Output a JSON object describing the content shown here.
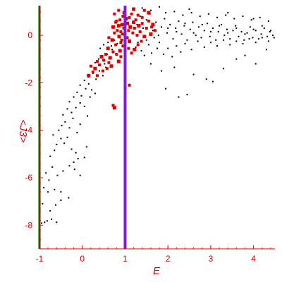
{
  "chart_data": {
    "type": "scatter",
    "title": "",
    "xlabel": "E",
    "ylabel": "<J3>",
    "xlim": [
      -1,
      4.5
    ],
    "ylim": [
      -9,
      1.25
    ],
    "x_ticks": [
      -1,
      0,
      1,
      2,
      3,
      4
    ],
    "y_ticks": [
      -8,
      -6,
      -4,
      -2,
      0
    ],
    "x_tick_labels": [
      "-1",
      "0",
      "1",
      "2",
      "3",
      "4"
    ],
    "y_tick_labels": [
      "-8",
      "-6",
      "-4",
      "-2",
      "0"
    ],
    "grid": false,
    "legend": false,
    "colors": {
      "black_points": "#000000",
      "red_points": "#e00000",
      "left_line": "#006400",
      "center_line": "#7a1fd6",
      "tick_text": "#e00000",
      "axis": "#e00000"
    },
    "vertical_lines": [
      {
        "x": -1.0,
        "color": "#006400"
      },
      {
        "x": 1.0,
        "color": "#7a1fd6"
      }
    ],
    "series": [
      {
        "color": "#000000",
        "marker_size": "small",
        "points": [
          [
            -0.95,
            -7.92
          ],
          [
            -0.88,
            -7.88
          ],
          [
            -0.82,
            -7.82
          ],
          [
            -0.72,
            -7.75
          ],
          [
            -0.6,
            -7.88
          ],
          [
            -0.93,
            -7.1
          ],
          [
            -0.8,
            -6.6
          ],
          [
            -0.75,
            -7.4
          ],
          [
            -0.62,
            -7.15
          ],
          [
            -0.5,
            -6.95
          ],
          [
            -0.9,
            -6.42
          ],
          [
            -0.78,
            -6.1
          ],
          [
            -0.65,
            -6.5
          ],
          [
            -0.5,
            -6.6
          ],
          [
            -0.32,
            -6.85
          ],
          [
            -0.85,
            -5.8
          ],
          [
            -0.7,
            -5.55
          ],
          [
            -0.58,
            -5.9
          ],
          [
            -0.45,
            -5.72
          ],
          [
            -0.3,
            -5.5
          ],
          [
            -0.2,
            -5.35
          ],
          [
            -0.1,
            -5.2
          ],
          [
            -0.05,
            -5.9
          ],
          [
            -0.18,
            -5.65
          ],
          [
            -0.75,
            -5.1
          ],
          [
            -0.65,
            -4.85
          ],
          [
            -0.6,
            -4.6
          ],
          [
            -0.5,
            -4.35
          ],
          [
            -0.42,
            -4.55
          ],
          [
            -0.35,
            -4.3
          ],
          [
            -0.25,
            -4.8
          ],
          [
            -0.15,
            -4.95
          ],
          [
            0.05,
            -5.15
          ],
          [
            -0.68,
            -4.2
          ],
          [
            -0.55,
            -4.0
          ],
          [
            -0.48,
            -3.8
          ],
          [
            -0.4,
            -3.65
          ],
          [
            -0.3,
            -3.9
          ],
          [
            -0.22,
            -3.5
          ],
          [
            -0.12,
            -4.1
          ],
          [
            -0.05,
            -3.75
          ],
          [
            0.1,
            -4.7
          ],
          [
            -0.45,
            -3.35
          ],
          [
            -0.35,
            -3.1
          ],
          [
            -0.25,
            -3.25
          ],
          [
            -0.15,
            -3.05
          ],
          [
            -0.05,
            -2.85
          ],
          [
            0.05,
            -3.0
          ],
          [
            0.12,
            -3.4
          ],
          [
            0.18,
            -2.6
          ],
          [
            -0.3,
            -2.8
          ],
          [
            -0.2,
            -2.6
          ],
          [
            -0.12,
            -2.4
          ],
          [
            -0.02,
            -2.55
          ],
          [
            0.08,
            -2.25
          ],
          [
            0.15,
            -2.05
          ],
          [
            0.22,
            -2.3
          ],
          [
            0.3,
            -2.45
          ],
          [
            -0.05,
            -2.1
          ],
          [
            0.05,
            -1.9
          ],
          [
            0.15,
            -1.75
          ],
          [
            0.25,
            -1.6
          ],
          [
            0.32,
            -1.85
          ],
          [
            0.4,
            -1.5
          ],
          [
            0.48,
            -1.7
          ],
          [
            0.55,
            -1.35
          ],
          [
            0.2,
            -1.3
          ],
          [
            0.3,
            -1.15
          ],
          [
            0.38,
            -1.0
          ],
          [
            0.45,
            -0.9
          ],
          [
            0.52,
            -1.2
          ],
          [
            0.58,
            -0.8
          ],
          [
            0.65,
            -0.95
          ],
          [
            0.7,
            -0.6
          ],
          [
            0.42,
            -0.55
          ],
          [
            0.5,
            -0.4
          ],
          [
            0.6,
            -0.3
          ],
          [
            0.68,
            -0.45
          ],
          [
            0.75,
            -0.2
          ],
          [
            0.82,
            -0.35
          ],
          [
            0.88,
            -0.1
          ],
          [
            0.92,
            0.05
          ],
          [
            1.25,
            -0.5
          ],
          [
            1.3,
            -0.3
          ],
          [
            1.38,
            -0.65
          ],
          [
            1.45,
            -0.85
          ],
          [
            1.5,
            -0.2
          ],
          [
            1.55,
            -0.4
          ],
          [
            1.62,
            -0.75
          ],
          [
            1.68,
            -0.1
          ],
          [
            1.75,
            -0.55
          ],
          [
            1.8,
            -0.3
          ],
          [
            1.28,
            0.45
          ],
          [
            1.35,
            0.8
          ],
          [
            1.42,
            0.3
          ],
          [
            1.5,
            0.65
          ],
          [
            1.58,
            0.9
          ],
          [
            1.65,
            0.2
          ],
          [
            1.72,
            0.55
          ],
          [
            1.78,
            0.0
          ],
          [
            1.85,
            0.35
          ],
          [
            1.92,
            0.7
          ],
          [
            1.98,
            0.1
          ],
          [
            2.05,
            0.45
          ],
          [
            2.12,
            -0.15
          ],
          [
            2.18,
            0.3
          ],
          [
            2.25,
            0.6
          ],
          [
            2.32,
            0.05
          ],
          [
            2.38,
            0.4
          ],
          [
            2.45,
            -0.2
          ],
          [
            2.52,
            0.25
          ],
          [
            2.58,
            0.55
          ],
          [
            2.65,
            0.0
          ],
          [
            2.72,
            0.35
          ],
          [
            2.78,
            -0.1
          ],
          [
            2.85,
            0.2
          ],
          [
            2.92,
            0.5
          ],
          [
            2.98,
            -0.05
          ],
          [
            3.05,
            0.3
          ],
          [
            3.12,
            -0.2
          ],
          [
            3.18,
            0.15
          ],
          [
            3.25,
            0.45
          ],
          [
            3.32,
            0.0
          ],
          [
            3.38,
            0.25
          ],
          [
            3.45,
            -0.15
          ],
          [
            3.52,
            0.2
          ],
          [
            3.58,
            0.4
          ],
          [
            3.65,
            -0.05
          ],
          [
            3.72,
            0.15
          ],
          [
            3.78,
            -0.2
          ],
          [
            3.85,
            0.1
          ],
          [
            3.92,
            0.35
          ],
          [
            3.98,
            -0.1
          ],
          [
            4.05,
            0.2
          ],
          [
            4.12,
            -0.15
          ],
          [
            4.18,
            0.05
          ],
          [
            4.25,
            0.3
          ],
          [
            4.32,
            -0.05
          ],
          [
            4.38,
            0.15
          ],
          [
            4.45,
            0.0
          ],
          [
            1.9,
            -0.8
          ],
          [
            2.0,
            -0.55
          ],
          [
            2.1,
            -0.9
          ],
          [
            2.2,
            -0.45
          ],
          [
            2.3,
            -0.7
          ],
          [
            2.4,
            -0.35
          ],
          [
            2.55,
            -0.6
          ],
          [
            2.7,
            -0.25
          ],
          [
            2.85,
            -0.5
          ],
          [
            3.0,
            -0.3
          ],
          [
            3.15,
            -0.45
          ],
          [
            3.3,
            -0.2
          ],
          [
            3.45,
            -0.4
          ],
          [
            3.6,
            -0.25
          ],
          [
            3.75,
            -0.35
          ],
          [
            3.9,
            -0.15
          ],
          [
            4.05,
            -0.3
          ],
          [
            4.2,
            -0.1
          ],
          [
            4.35,
            -0.25
          ],
          [
            1.95,
            0.95
          ],
          [
            2.15,
            1.0
          ],
          [
            2.35,
            0.85
          ],
          [
            2.55,
            0.95
          ],
          [
            2.75,
            0.8
          ],
          [
            2.95,
            0.9
          ],
          [
            3.15,
            0.75
          ],
          [
            3.35,
            0.85
          ],
          [
            3.55,
            0.7
          ],
          [
            3.75,
            0.8
          ],
          [
            3.95,
            0.65
          ],
          [
            4.15,
            0.75
          ],
          [
            4.35,
            0.6
          ],
          [
            1.4,
            1.15
          ],
          [
            1.6,
            1.05
          ],
          [
            1.8,
            1.2
          ],
          [
            2.5,
            1.1
          ],
          [
            3.4,
            0.95
          ],
          [
            4.0,
            0.7
          ],
          [
            1.6,
            -1.2
          ],
          [
            1.85,
            -1.5
          ],
          [
            2.15,
            -1.35
          ],
          [
            2.6,
            -1.65
          ],
          [
            2.9,
            -1.85
          ],
          [
            3.3,
            -1.4
          ],
          [
            3.6,
            -1.0
          ],
          [
            4.05,
            -1.2
          ],
          [
            1.95,
            -2.25
          ],
          [
            2.25,
            -2.6
          ],
          [
            2.45,
            -2.5
          ],
          [
            3.05,
            -1.95
          ],
          [
            3.8,
            -0.85
          ],
          [
            4.3,
            -0.6
          ],
          [
            2.0,
            0.3
          ],
          [
            2.2,
            0.15
          ],
          [
            2.4,
            0.5
          ],
          [
            2.6,
            0.1
          ],
          [
            2.8,
            0.45
          ],
          [
            3.0,
            0.15
          ],
          [
            3.2,
            0.4
          ],
          [
            3.4,
            0.1
          ],
          [
            3.6,
            0.3
          ],
          [
            3.8,
            0.05
          ],
          [
            4.0,
            0.25
          ],
          [
            4.2,
            0.4
          ],
          [
            4.4,
            0.2
          ],
          [
            4.48,
            -0.1
          ]
        ]
      },
      {
        "color": "#e00000",
        "marker_size": "large",
        "points": [
          [
            0.72,
            0.35
          ],
          [
            0.78,
            0.55
          ],
          [
            0.82,
            0.2
          ],
          [
            0.85,
            0.4
          ],
          [
            0.88,
            0.65
          ],
          [
            0.9,
            0.15
          ],
          [
            0.93,
            0.45
          ],
          [
            0.95,
            0.8
          ],
          [
            0.97,
            0.3
          ],
          [
            0.98,
            0.95
          ],
          [
            0.8,
            0.6
          ],
          [
            0.75,
            0.1
          ],
          [
            0.86,
            -0.05
          ],
          [
            0.92,
            -0.2
          ],
          [
            0.96,
            0.05
          ],
          [
            1.05,
            0.5
          ],
          [
            1.08,
            0.2
          ],
          [
            1.1,
            0.75
          ],
          [
            1.12,
            0.35
          ],
          [
            1.15,
            0.9
          ],
          [
            1.18,
            0.1
          ],
          [
            1.2,
            0.55
          ],
          [
            1.22,
            0.3
          ],
          [
            1.05,
            -0.1
          ],
          [
            1.1,
            -0.25
          ],
          [
            1.25,
            0.65
          ],
          [
            1.28,
            0.0
          ],
          [
            1.32,
            0.4
          ],
          [
            1.35,
            0.15
          ],
          [
            1.4,
            0.5
          ],
          [
            1.45,
            -0.05
          ],
          [
            1.5,
            0.3
          ],
          [
            1.55,
            0.6
          ],
          [
            1.6,
            0.05
          ],
          [
            1.62,
            0.35
          ],
          [
            1.45,
            1.05
          ],
          [
            1.55,
            0.95
          ],
          [
            1.3,
            0.85
          ],
          [
            1.4,
            0.75
          ],
          [
            1.2,
            1.1
          ],
          [
            0.85,
            1.05
          ],
          [
            0.75,
            0.9
          ],
          [
            1.65,
            0.45
          ],
          [
            1.7,
            0.2
          ],
          [
            0.95,
            -0.45
          ],
          [
            0.88,
            -0.65
          ],
          [
            0.8,
            -0.8
          ],
          [
            0.72,
            -0.7
          ],
          [
            0.65,
            -0.95
          ],
          [
            1.08,
            -0.55
          ],
          [
            1.15,
            -0.75
          ],
          [
            1.22,
            -0.6
          ],
          [
            1.3,
            -0.4
          ],
          [
            1.38,
            -0.25
          ],
          [
            0.6,
            -0.55
          ],
          [
            0.55,
            -0.8
          ],
          [
            0.5,
            -1.05
          ],
          [
            0.45,
            -0.9
          ],
          [
            0.4,
            -1.25
          ],
          [
            0.35,
            -1.1
          ],
          [
            0.3,
            -1.4
          ],
          [
            0.25,
            -1.55
          ],
          [
            0.2,
            -1.3
          ],
          [
            0.15,
            -1.7
          ],
          [
            0.62,
            -1.15
          ],
          [
            0.58,
            -1.4
          ],
          [
            0.68,
            -1.3
          ],
          [
            0.48,
            -1.5
          ],
          [
            0.35,
            -1.7
          ],
          [
            0.85,
            -1.1
          ],
          [
            0.9,
            -0.9
          ],
          [
            0.78,
            -0.4
          ],
          [
            0.7,
            -0.2
          ],
          [
            0.62,
            -0.1
          ],
          [
            1.1,
            -2.1
          ],
          [
            0.75,
            -3.05
          ],
          [
            0.72,
            -2.95
          ],
          [
            0.9,
            -0.3
          ],
          [
            1.02,
            0.7
          ]
        ]
      }
    ]
  }
}
